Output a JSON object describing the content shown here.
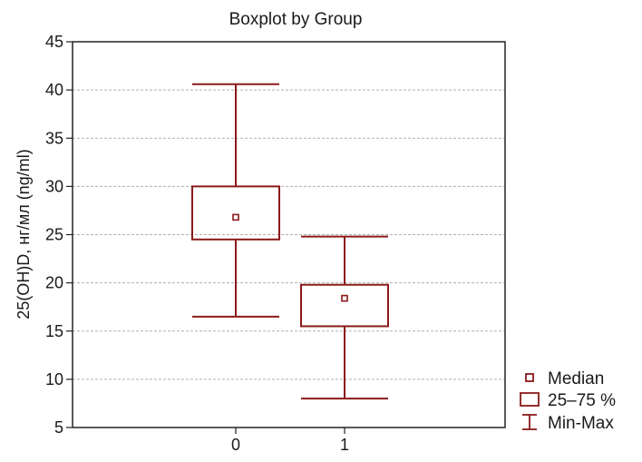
{
  "chart_data": {
    "type": "boxplot",
    "title": "Boxplot by Group",
    "xlabel": "",
    "ylabel": "25(OH)D, нг/мл (ng/ml)",
    "ylim": [
      5,
      45
    ],
    "yticks": [
      "5",
      "10",
      "15",
      "20",
      "25",
      "30",
      "35",
      "40",
      "45"
    ],
    "grid": true,
    "color": "#8b1a1a",
    "categories": [
      "0",
      "1"
    ],
    "boxes": [
      {
        "category": "0",
        "min": 16.5,
        "q1": 24.5,
        "median": 26.8,
        "q3": 30.0,
        "max": 40.6
      },
      {
        "category": "1",
        "min": 8.0,
        "q1": 15.5,
        "median": 18.4,
        "q3": 19.8,
        "max": 24.8
      }
    ],
    "legend": {
      "position": "bottom-right",
      "items": [
        "Median",
        "25–75 %",
        "Min-Max"
      ]
    }
  }
}
